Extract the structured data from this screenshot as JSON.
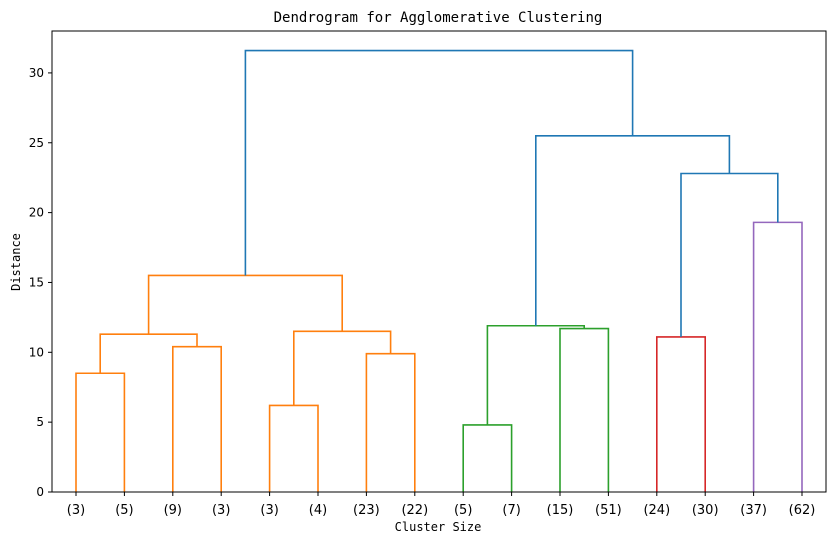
{
  "chart_data": {
    "type": "dendrogram",
    "title": "Dendrogram for Agglomerative Clustering",
    "xlabel": "Cluster Size",
    "ylabel": "Distance",
    "ylim": [
      0,
      33
    ],
    "yticks": [
      0,
      5,
      10,
      15,
      20,
      25,
      30
    ],
    "leaves": [
      "(3)",
      "(5)",
      "(9)",
      "(3)",
      "(3)",
      "(4)",
      "(23)",
      "(22)",
      "(5)",
      "(7)",
      "(15)",
      "(51)",
      "(24)",
      "(30)",
      "(37)",
      "(62)"
    ],
    "merges": [
      {
        "left": "L0",
        "right": "L1",
        "height": 8.5,
        "color": "#ff7f0e"
      },
      {
        "left": "L2",
        "right": "L3",
        "height": 10.4,
        "color": "#ff7f0e"
      },
      {
        "left": "L4",
        "right": "L5",
        "height": 6.2,
        "color": "#ff7f0e"
      },
      {
        "left": "L6",
        "right": "L7",
        "height": 9.9,
        "color": "#ff7f0e"
      },
      {
        "left": "L8",
        "right": "L9",
        "height": 4.8,
        "color": "#2ca02c"
      },
      {
        "left": "L10",
        "right": "L11",
        "height": 11.7,
        "color": "#2ca02c"
      },
      {
        "left": "L12",
        "right": "L13",
        "height": 11.1,
        "color": "#d62728"
      },
      {
        "left": "L14",
        "right": "L15",
        "height": 19.3,
        "color": "#9467bd"
      },
      {
        "left": "M0",
        "right": "M1",
        "height": 11.3,
        "color": "#ff7f0e"
      },
      {
        "left": "M2",
        "right": "M3",
        "height": 11.5,
        "color": "#ff7f0e"
      },
      {
        "left": "M8",
        "right": "M9",
        "height": 15.5,
        "color": "#ff7f0e"
      },
      {
        "left": "M4",
        "right": "M5",
        "height": 11.9,
        "color": "#2ca02c"
      },
      {
        "left": "M6",
        "right": "M7",
        "height": 22.8,
        "color": "#1f77b4"
      },
      {
        "left": "M11",
        "right": "M12",
        "height": 25.5,
        "color": "#1f77b4"
      },
      {
        "left": "M10",
        "right": "M13",
        "height": 31.6,
        "color": "#1f77b4"
      }
    ]
  }
}
